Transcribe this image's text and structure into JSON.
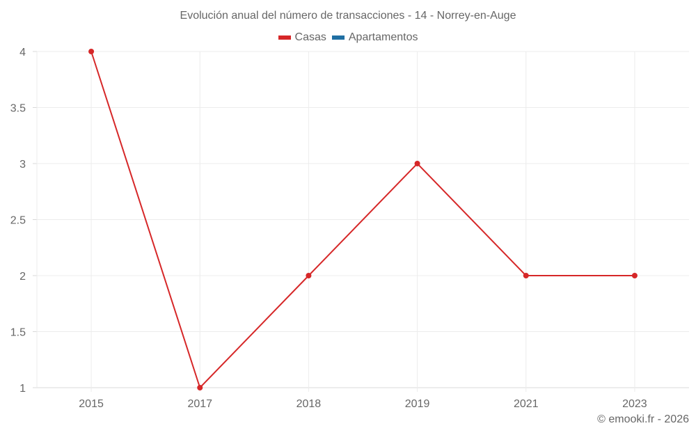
{
  "chart_data": {
    "type": "line",
    "title": "Evolución anual del número de transacciones - 14 - Norrey-en-Auge",
    "xlabel": "",
    "ylabel": "",
    "categories": [
      "2015",
      "2017",
      "2018",
      "2019",
      "2021",
      "2023"
    ],
    "series": [
      {
        "name": "Casas",
        "color": "#d62728",
        "values": [
          4,
          1,
          2,
          3,
          2,
          2
        ]
      },
      {
        "name": "Apartamentos",
        "color": "#1f6fa3",
        "values": []
      }
    ],
    "ylim": [
      1,
      4
    ],
    "yticks": [
      "1",
      "1.5",
      "2",
      "2.5",
      "3",
      "3.5",
      "4"
    ],
    "grid": true,
    "legend_position": "top"
  },
  "title": "Evolución anual del número de transacciones - 14 - Norrey-en-Auge",
  "legend": [
    {
      "label": "Casas",
      "color": "#d62728"
    },
    {
      "label": "Apartamentos",
      "color": "#1f6fa3"
    }
  ],
  "credit": "© emooki.fr - 2026"
}
